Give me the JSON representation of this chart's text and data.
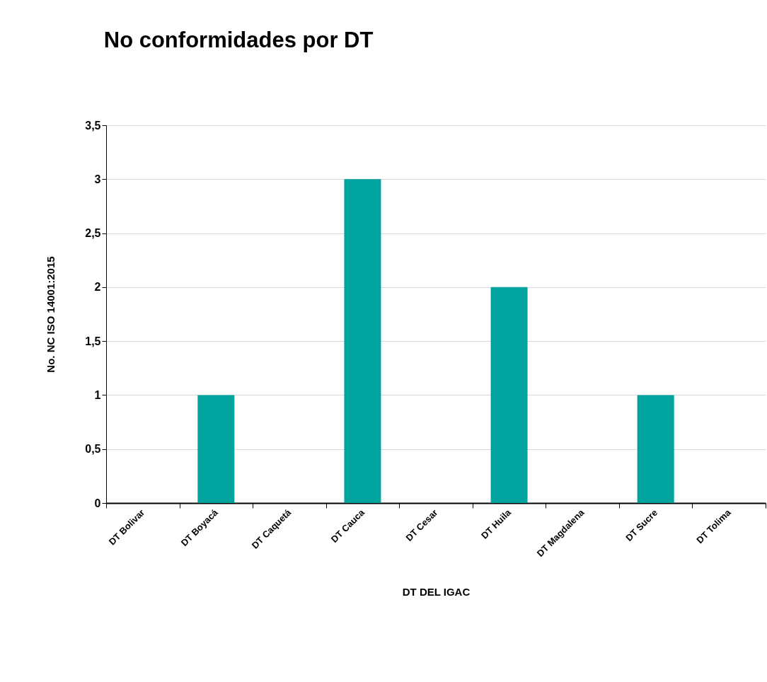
{
  "chart_data": {
    "type": "bar",
    "title": "No conformidades por DT",
    "xlabel": "DT DEL IGAC",
    "ylabel": "No. NC ISO 14001:2015",
    "categories": [
      "DT Bolivar",
      "DT Boyacá",
      "DT Caquetá",
      "DT Cauca",
      "DT Cesar",
      "DT Huila",
      "DT Magdalena",
      "DT Sucre",
      "DT Tolima"
    ],
    "values": [
      0,
      1,
      0,
      3,
      0,
      2,
      0,
      1,
      0
    ],
    "color": "#00a39d",
    "ylim": [
      0,
      3.5
    ],
    "yticks": [
      0,
      {
        "value": 0.5,
        "label": "0,5"
      },
      1,
      {
        "value": 1.5,
        "label": "1,5"
      },
      2,
      {
        "value": 2.5,
        "label": "2,5"
      },
      3,
      {
        "value": 3.5,
        "label": "3,5"
      }
    ],
    "grid": "y"
  }
}
